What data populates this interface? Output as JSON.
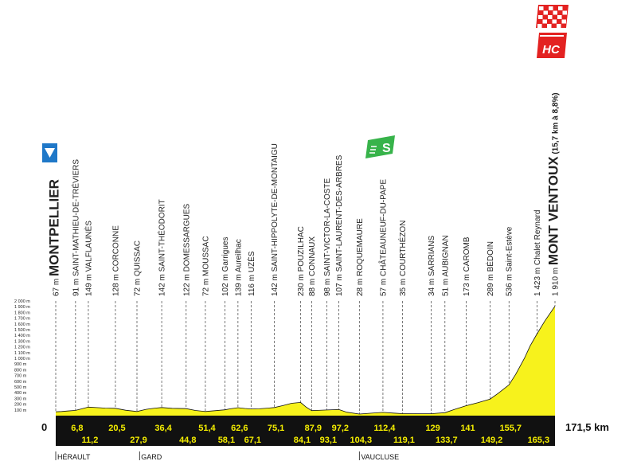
{
  "chart_data": {
    "type": "area",
    "total_distance_label": "171,5 km",
    "origin_label": "0",
    "y_ticks": [
      "100 m",
      "200 m",
      "300 m",
      "400 m",
      "500 m",
      "600 m",
      "700 m",
      "800 m",
      "900 m",
      "1 000 m",
      "1 100 m",
      "1 200 m",
      "1 300 m",
      "1 400 m",
      "1 500 m",
      "1 600 m",
      "1 700 m",
      "1 800 m",
      "1 900 m",
      "2 000 m"
    ],
    "ylim": [
      0,
      2000
    ],
    "xlim": [
      0,
      171.5
    ],
    "waypoints": [
      {
        "km": 0,
        "km_label": "",
        "alt_label": "67 m",
        "name": "MONTPELLIER",
        "big": true
      },
      {
        "km": 6.8,
        "km_label": "6,8",
        "alt_label": "91 m",
        "name": "SAINT-MATHIEU-DE-TRÉVIERS",
        "big": false
      },
      {
        "km": 11.2,
        "km_label": "11,2",
        "alt_label": "149 m",
        "name": "VALFLAUNÈS",
        "big": false
      },
      {
        "km": 20.5,
        "km_label": "20,5",
        "alt_label": "128 m",
        "name": "CORCONNE",
        "big": false
      },
      {
        "km": 27.9,
        "km_label": "27,9",
        "alt_label": "72 m",
        "name": "QUISSAC",
        "big": false
      },
      {
        "km": 36.4,
        "km_label": "36,4",
        "alt_label": "142 m",
        "name": "SAINT-THÉODORIT",
        "big": false
      },
      {
        "km": 44.8,
        "km_label": "44,8",
        "alt_label": "122 m",
        "name": "DOMESSARGUES",
        "big": false
      },
      {
        "km": 51.4,
        "km_label": "51,4",
        "alt_label": "72 m",
        "name": "MOUSSAC",
        "big": false
      },
      {
        "km": 58.1,
        "km_label": "58,1",
        "alt_label": "102 m",
        "name": "Garrigues",
        "big": false
      },
      {
        "km": 62.6,
        "km_label": "62,6",
        "alt_label": "139 m",
        "name": "Aureilhac",
        "big": false
      },
      {
        "km": 67.1,
        "km_label": "67,1",
        "alt_label": "116 m",
        "name": "UZÈS",
        "big": false
      },
      {
        "km": 75.1,
        "km_label": "75,1",
        "alt_label": "142 m",
        "name": "SAINT-HIPPOLYTE-DE-MONTAIGU",
        "big": false
      },
      {
        "km": 84.1,
        "km_label": "84,1",
        "alt_label": "230 m",
        "name": "POUZILHAC",
        "big": false
      },
      {
        "km": 87.9,
        "km_label": "87,9",
        "alt_label": "88 m",
        "name": "CONNAUX",
        "big": false
      },
      {
        "km": 93.1,
        "km_label": "93,1",
        "alt_label": "98 m",
        "name": "SAINT-VICTOR-LA-COSTE",
        "big": false
      },
      {
        "km": 97.2,
        "km_label": "97,2",
        "alt_label": "107 m",
        "name": "SAINT-LAURENT-DES-ARBRES",
        "big": false
      },
      {
        "km": 104.3,
        "km_label": "104,3",
        "alt_label": "28 m",
        "name": "ROQUEMAURE",
        "big": false
      },
      {
        "km": 112.4,
        "km_label": "112,4",
        "alt_label": "57 m",
        "name": "CHÂTEAUNEUF-DU-PAPE",
        "big": false
      },
      {
        "km": 119.1,
        "km_label": "119,1",
        "alt_label": "35 m",
        "name": "COURTHÉZON",
        "big": false
      },
      {
        "km": 129,
        "km_label": "129",
        "alt_label": "34 m",
        "name": "SARRIANS",
        "big": false
      },
      {
        "km": 133.7,
        "km_label": "133,7",
        "alt_label": "51 m",
        "name": "AUBIGNAN",
        "big": false
      },
      {
        "km": 141,
        "km_label": "141",
        "alt_label": "173 m",
        "name": "CAROMB",
        "big": false
      },
      {
        "km": 149.2,
        "km_label": "149,2",
        "alt_label": "289 m",
        "name": "BÉDOIN",
        "big": false
      },
      {
        "km": 155.7,
        "km_label": "155,7",
        "alt_label": "536 m",
        "name": "Saint-Estève",
        "big": false
      },
      {
        "km": 165.3,
        "km_label": "165,3",
        "alt_label": "1 423 m",
        "name": "Chalet Reynard",
        "big": false
      },
      {
        "km": 171.5,
        "km_label": "",
        "alt_label": "1 910 m",
        "name": "MONT VENTOUX",
        "big": true,
        "suffix": "(15,7 km à 8,8%)"
      }
    ],
    "profile": [
      [
        0,
        67
      ],
      [
        2,
        72
      ],
      [
        4,
        80
      ],
      [
        6.8,
        91
      ],
      [
        9,
        120
      ],
      [
        11.2,
        149
      ],
      [
        14,
        140
      ],
      [
        17,
        132
      ],
      [
        20.5,
        128
      ],
      [
        24,
        95
      ],
      [
        27.9,
        72
      ],
      [
        31,
        110
      ],
      [
        34,
        130
      ],
      [
        36.4,
        142
      ],
      [
        40,
        128
      ],
      [
        44.8,
        122
      ],
      [
        48,
        90
      ],
      [
        51.4,
        72
      ],
      [
        55,
        88
      ],
      [
        58.1,
        102
      ],
      [
        60,
        120
      ],
      [
        62.6,
        139
      ],
      [
        65,
        125
      ],
      [
        67.1,
        116
      ],
      [
        70,
        120
      ],
      [
        73,
        132
      ],
      [
        75.1,
        142
      ],
      [
        78,
        175
      ],
      [
        81,
        215
      ],
      [
        84.1,
        230
      ],
      [
        86,
        150
      ],
      [
        87.9,
        88
      ],
      [
        90,
        92
      ],
      [
        93.1,
        98
      ],
      [
        95,
        103
      ],
      [
        97.2,
        107
      ],
      [
        100,
        60
      ],
      [
        104.3,
        28
      ],
      [
        108,
        42
      ],
      [
        112.4,
        57
      ],
      [
        116,
        45
      ],
      [
        119.1,
        35
      ],
      [
        124,
        34
      ],
      [
        129,
        34
      ],
      [
        131,
        42
      ],
      [
        133.7,
        51
      ],
      [
        137,
        110
      ],
      [
        141,
        173
      ],
      [
        145,
        225
      ],
      [
        149.2,
        289
      ],
      [
        152,
        390
      ],
      [
        155.7,
        536
      ],
      [
        158,
        720
      ],
      [
        161,
        1000
      ],
      [
        163,
        1220
      ],
      [
        165.3,
        1423
      ],
      [
        168,
        1650
      ],
      [
        171.5,
        1910
      ]
    ],
    "departments": [
      {
        "km": 0,
        "label": "HÉRAULT"
      },
      {
        "km": 28.8,
        "label": "GARD"
      },
      {
        "km": 104.3,
        "label": "VAUCLUSE"
      }
    ],
    "sprint": {
      "km": 112.4,
      "label": "S"
    },
    "summit_category": "HC",
    "finish_marker": "checkered-flag"
  },
  "colors": {
    "profile_fill": "#f7f21c",
    "profile_stroke": "#111111",
    "band": "#111111",
    "band_text": "#f5ee00",
    "sprint": "#37b34a",
    "hc": "#e32221",
    "start_flag": "#1f78c8"
  }
}
